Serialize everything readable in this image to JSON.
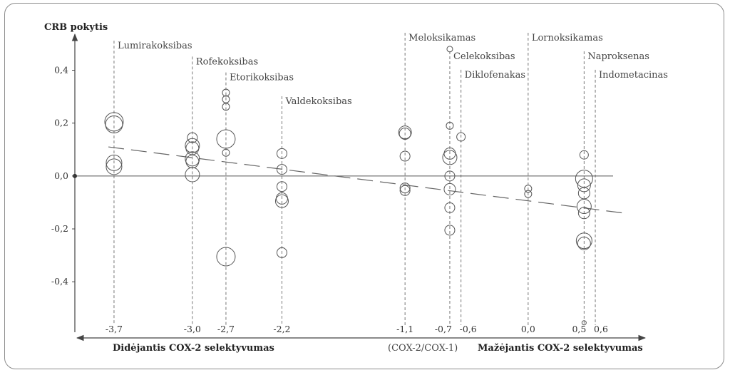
{
  "chart_data": {
    "type": "scatter",
    "title": "",
    "ylabel": "CRB pokytis",
    "xlabel_left": "Didėjantis COX-2 selektyvumas",
    "xlabel_right_prefix": "(COX-2/COX-1)",
    "xlabel_right": "Mažėjantis COX-2 selektyvumas",
    "xlim": [
      -4.05,
      0.95
    ],
    "ylim": [
      -0.58,
      0.52
    ],
    "y_ticks": [
      {
        "value": 0.4,
        "label": "0,4"
      },
      {
        "value": 0.2,
        "label": "0,2"
      },
      {
        "value": 0.0,
        "label": "0,0"
      },
      {
        "value": -0.2,
        "label": "-0,2"
      },
      {
        "value": -0.4,
        "label": "-0,4"
      }
    ],
    "x_ticks": [
      {
        "value": -3.7,
        "label": "-3,7"
      },
      {
        "value": -3.0,
        "label": "-3,0"
      },
      {
        "value": -2.7,
        "label": "-2,7"
      },
      {
        "value": -2.2,
        "label": "-2,2"
      },
      {
        "value": -1.1,
        "label": "-1,1"
      },
      {
        "value": -0.7,
        "label": "-0,7"
      },
      {
        "value": -0.6,
        "label": "-0,6"
      },
      {
        "value": 0.0,
        "label": "0,0"
      },
      {
        "value": 0.5,
        "label": "0,5"
      },
      {
        "value": 0.6,
        "label": "0,6"
      }
    ],
    "drugs": [
      {
        "name": "Lumirakoksibas",
        "x": -3.7,
        "label_y": 0.49
      },
      {
        "name": "Rofekoksibas",
        "x": -3.0,
        "label_y": 0.43
      },
      {
        "name": "Etorikoksibas",
        "x": -2.7,
        "label_y": 0.37
      },
      {
        "name": "Valdekoksibas",
        "x": -2.2,
        "label_y": 0.28
      },
      {
        "name": "Meloksikamas",
        "x": -1.1,
        "label_y": 0.52
      },
      {
        "name": "Celekoksibas",
        "x": -0.7,
        "label_y": 0.45
      },
      {
        "name": "Diklofenakas",
        "x": -0.6,
        "label_y": 0.38
      },
      {
        "name": "Lornoksikamas",
        "x": 0.0,
        "label_y": 0.52
      },
      {
        "name": "Naproksenas",
        "x": 0.5,
        "label_y": 0.45
      },
      {
        "name": "Indometacinas",
        "x": 0.6,
        "label_y": 0.38
      }
    ],
    "points": [
      {
        "x": -3.7,
        "y": 0.205,
        "size": 13
      },
      {
        "x": -3.7,
        "y": 0.195,
        "size": 12
      },
      {
        "x": -3.7,
        "y": 0.05,
        "size": 11
      },
      {
        "x": -3.7,
        "y": 0.035,
        "size": 11
      },
      {
        "x": -3.0,
        "y": 0.145,
        "size": 7
      },
      {
        "x": -3.0,
        "y": 0.115,
        "size": 10
      },
      {
        "x": -3.0,
        "y": 0.105,
        "size": 9
      },
      {
        "x": -3.0,
        "y": 0.065,
        "size": 10
      },
      {
        "x": -3.0,
        "y": 0.055,
        "size": 9
      },
      {
        "x": -3.0,
        "y": 0.005,
        "size": 10
      },
      {
        "x": -2.7,
        "y": 0.315,
        "size": 5
      },
      {
        "x": -2.7,
        "y": 0.29,
        "size": 5
      },
      {
        "x": -2.7,
        "y": 0.262,
        "size": 5
      },
      {
        "x": -2.7,
        "y": 0.14,
        "size": 13
      },
      {
        "x": -2.7,
        "y": 0.088,
        "size": 5
      },
      {
        "x": -2.7,
        "y": -0.305,
        "size": 13
      },
      {
        "x": -2.2,
        "y": 0.085,
        "size": 7
      },
      {
        "x": -2.2,
        "y": 0.025,
        "size": 7
      },
      {
        "x": -2.2,
        "y": -0.04,
        "size": 7
      },
      {
        "x": -2.2,
        "y": -0.085,
        "size": 8
      },
      {
        "x": -2.2,
        "y": -0.095,
        "size": 9
      },
      {
        "x": -2.2,
        "y": -0.29,
        "size": 7
      },
      {
        "x": -1.1,
        "y": 0.165,
        "size": 9
      },
      {
        "x": -1.1,
        "y": 0.16,
        "size": 8
      },
      {
        "x": -1.1,
        "y": 0.075,
        "size": 7
      },
      {
        "x": -1.1,
        "y": -0.045,
        "size": 7
      },
      {
        "x": -1.1,
        "y": -0.055,
        "size": 7
      },
      {
        "x": -0.7,
        "y": 0.48,
        "size": 4
      },
      {
        "x": -0.7,
        "y": 0.19,
        "size": 5
      },
      {
        "x": -0.7,
        "y": 0.085,
        "size": 8
      },
      {
        "x": -0.7,
        "y": 0.07,
        "size": 10
      },
      {
        "x": -0.7,
        "y": 0.0,
        "size": 7
      },
      {
        "x": -0.7,
        "y": -0.05,
        "size": 8
      },
      {
        "x": -0.7,
        "y": -0.12,
        "size": 7
      },
      {
        "x": -0.7,
        "y": -0.205,
        "size": 7
      },
      {
        "x": -0.6,
        "y": 0.148,
        "size": 6
      },
      {
        "x": 0.0,
        "y": -0.048,
        "size": 5
      },
      {
        "x": 0.0,
        "y": -0.068,
        "size": 5
      },
      {
        "x": 0.5,
        "y": 0.08,
        "size": 6
      },
      {
        "x": 0.5,
        "y": -0.01,
        "size": 12
      },
      {
        "x": 0.5,
        "y": -0.035,
        "size": 9
      },
      {
        "x": 0.5,
        "y": -0.065,
        "size": 8
      },
      {
        "x": 0.5,
        "y": -0.115,
        "size": 10
      },
      {
        "x": 0.5,
        "y": -0.14,
        "size": 8
      },
      {
        "x": 0.5,
        "y": -0.245,
        "size": 11
      },
      {
        "x": 0.5,
        "y": -0.255,
        "size": 9
      },
      {
        "x": 0.5,
        "y": -0.555,
        "size": 3
      }
    ],
    "trendline": {
      "x": [
        -3.75,
        0.85
      ],
      "y": [
        0.11,
        -0.14
      ]
    },
    "grid": false
  }
}
